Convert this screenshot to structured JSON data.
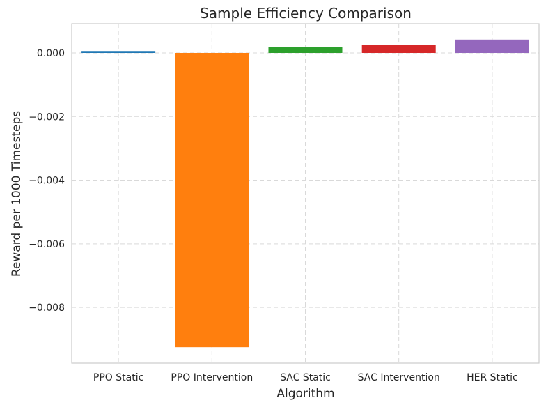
{
  "chart_data": {
    "type": "bar",
    "title": "Sample Efficiency Comparison",
    "xlabel": "Algorithm",
    "ylabel": "Reward per 1000 Timesteps",
    "categories": [
      "PPO Static",
      "PPO Intervention",
      "SAC Static",
      "SAC Intervention",
      "HER Static"
    ],
    "values": [
      6e-05,
      -0.00925,
      0.00018,
      0.00025,
      0.00042
    ],
    "colors": [
      "#1f77b4",
      "#ff7f0e",
      "#2ca02c",
      "#d62728",
      "#9467bd"
    ],
    "ylim": [
      -0.00975,
      0.00092
    ],
    "yticks": [
      0.0,
      -0.002,
      -0.004,
      -0.006,
      -0.008
    ],
    "ytick_labels": [
      "0.000",
      "−0.002",
      "−0.004",
      "−0.006",
      "−0.008"
    ],
    "grid": true
  }
}
